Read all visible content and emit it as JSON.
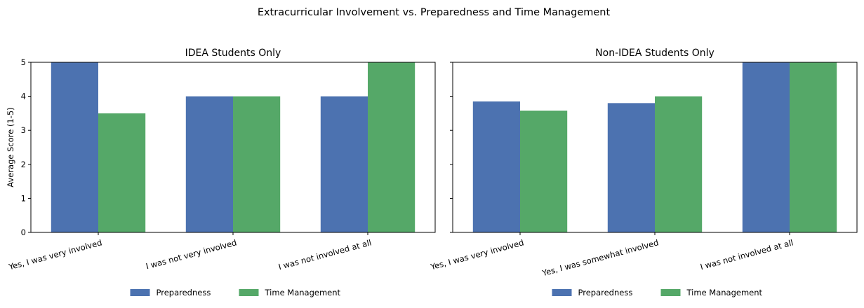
{
  "figure": {
    "suptitle": "Extracurricular Involvement vs. Preparedness and Time Management"
  },
  "chart_data": [
    {
      "type": "bar",
      "title": "IDEA Students Only",
      "xlabel": "",
      "ylabel": "Average Score (1-5)",
      "ylim": [
        0,
        5
      ],
      "yticks": [
        "0",
        "1",
        "2",
        "3",
        "4",
        "5"
      ],
      "categories": [
        "Yes, I was very involved",
        "I was not very involved",
        "I was not involved at all"
      ],
      "series": [
        {
          "name": "Preparedness",
          "color": "#4c72b0",
          "values": [
            5.0,
            4.0,
            4.0
          ]
        },
        {
          "name": "Time Management",
          "color": "#55a868",
          "values": [
            3.5,
            4.0,
            5.0
          ]
        }
      ],
      "legend": {
        "placement": "bottom-center",
        "entries": [
          "Preparedness",
          "Time Management"
        ]
      },
      "grid": false
    },
    {
      "type": "bar",
      "title": "Non-IDEA Students Only",
      "xlabel": "",
      "ylabel": "",
      "ylim": [
        0,
        5
      ],
      "yticks": [
        "0",
        "1",
        "2",
        "3",
        "4",
        "5"
      ],
      "categories": [
        "Yes, I was very involved",
        "Yes, I was somewhat involved",
        "I was not involved at all"
      ],
      "series": [
        {
          "name": "Preparedness",
          "color": "#4c72b0",
          "values": [
            3.85,
            3.8,
            5.0
          ]
        },
        {
          "name": "Time Management",
          "color": "#55a868",
          "values": [
            3.58,
            4.0,
            5.0
          ]
        }
      ],
      "legend": {
        "placement": "bottom-center",
        "entries": [
          "Preparedness",
          "Time Management"
        ]
      },
      "grid": false
    }
  ]
}
